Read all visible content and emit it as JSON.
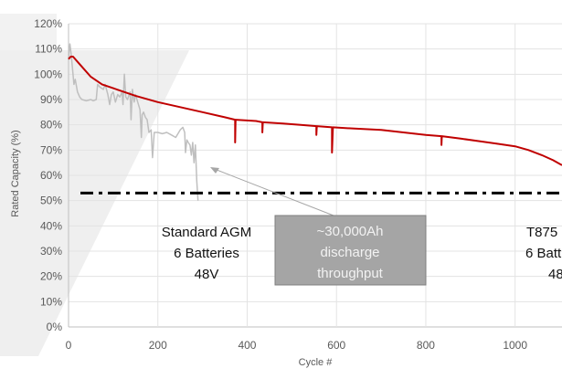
{
  "chart_data": {
    "type": "line",
    "title": "",
    "xlabel": "Cycle #",
    "ylabel": "Rated Capacity (%)",
    "xlim": [
      0,
      1105
    ],
    "ylim": [
      0,
      120
    ],
    "x_ticks": [
      "0",
      "200",
      "400",
      "600",
      "800",
      "1000"
    ],
    "y_ticks": [
      "0%",
      "10%",
      "20%",
      "30%",
      "40%",
      "50%",
      "60%",
      "70%",
      "80%",
      "90%",
      "100%",
      "110%",
      "120%"
    ],
    "grid": true,
    "legend": "none",
    "series": [
      {
        "color": "#c00000",
        "points": [
          [
            0,
            106
          ],
          [
            5,
            107
          ],
          [
            10,
            107
          ],
          [
            25,
            104
          ],
          [
            50,
            99
          ],
          [
            75,
            96
          ],
          [
            100,
            94.5
          ],
          [
            150,
            91.5
          ],
          [
            200,
            89
          ],
          [
            250,
            87
          ],
          [
            300,
            85
          ],
          [
            350,
            83
          ],
          [
            373,
            82
          ],
          [
            373,
            73
          ],
          [
            374,
            82
          ],
          [
            420,
            81.5
          ],
          [
            434,
            81
          ],
          [
            434,
            77
          ],
          [
            435,
            81
          ],
          [
            480,
            80.5
          ],
          [
            520,
            80
          ],
          [
            555,
            79.5
          ],
          [
            555,
            76
          ],
          [
            556,
            79.5
          ],
          [
            590,
            79
          ],
          [
            590,
            69
          ],
          [
            592,
            79
          ],
          [
            640,
            78.5
          ],
          [
            700,
            78
          ],
          [
            750,
            77
          ],
          [
            800,
            76
          ],
          [
            835,
            75.5
          ],
          [
            835,
            72
          ],
          [
            836,
            75.5
          ],
          [
            880,
            74.5
          ],
          [
            920,
            73.5
          ],
          [
            960,
            72.5
          ],
          [
            1000,
            71.5
          ],
          [
            1030,
            70
          ],
          [
            1060,
            68
          ],
          [
            1085,
            66
          ],
          [
            1105,
            64
          ]
        ]
      },
      {
        "color": "#bfbfbf",
        "points": [
          [
            0,
            106
          ],
          [
            3,
            112
          ],
          [
            6,
            108
          ],
          [
            10,
            100
          ],
          [
            12,
            96
          ],
          [
            15,
            98
          ],
          [
            20,
            93
          ],
          [
            25,
            91
          ],
          [
            30,
            90
          ],
          [
            40,
            89.5
          ],
          [
            50,
            90
          ],
          [
            55,
            89.5
          ],
          [
            62,
            90
          ],
          [
            65,
            96
          ],
          [
            70,
            95
          ],
          [
            78,
            94
          ],
          [
            82,
            96
          ],
          [
            88,
            92
          ],
          [
            92,
            88
          ],
          [
            96,
            92
          ],
          [
            100,
            93
          ],
          [
            105,
            89
          ],
          [
            110,
            92
          ],
          [
            115,
            91
          ],
          [
            120,
            93
          ],
          [
            122,
            88
          ],
          [
            125,
            100
          ],
          [
            128,
            91
          ],
          [
            132,
            90
          ],
          [
            138,
            93
          ],
          [
            140,
            82
          ],
          [
            143,
            94
          ],
          [
            147,
            89
          ],
          [
            150,
            92
          ],
          [
            155,
            89
          ],
          [
            160,
            86
          ],
          [
            163,
            75
          ],
          [
            165,
            84
          ],
          [
            168,
            85
          ],
          [
            172,
            83
          ],
          [
            176,
            82
          ],
          [
            180,
            77
          ],
          [
            185,
            78
          ],
          [
            188,
            67
          ],
          [
            192,
            77
          ],
          [
            200,
            77
          ],
          [
            210,
            76.5
          ],
          [
            220,
            77
          ],
          [
            230,
            76
          ],
          [
            240,
            75
          ],
          [
            250,
            78
          ],
          [
            256,
            79
          ],
          [
            260,
            77
          ],
          [
            262,
            69
          ],
          [
            265,
            74
          ],
          [
            268,
            73
          ],
          [
            272,
            72
          ],
          [
            275,
            68
          ],
          [
            278,
            73
          ],
          [
            281,
            65
          ],
          [
            284,
            72
          ],
          [
            287,
            58
          ],
          [
            290,
            50
          ]
        ]
      }
    ],
    "reference_line": {
      "y": 53,
      "style": "dash-dot",
      "color": "#000000"
    },
    "annotations": {
      "agm": [
        "Standard AGM",
        "6 Batteries",
        "48V"
      ],
      "box": [
        "~30,000Ah",
        "discharge",
        "throughput"
      ],
      "t875": [
        "T875",
        "6 Batt",
        "48"
      ]
    }
  }
}
